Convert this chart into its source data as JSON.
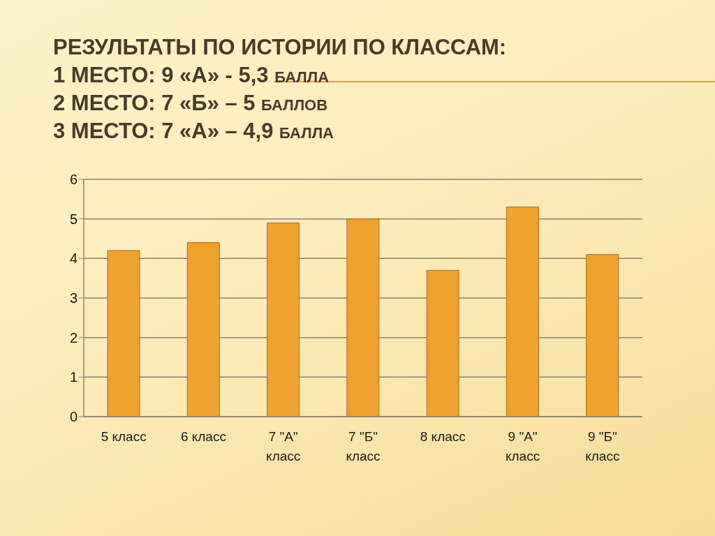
{
  "chart_data": {
    "type": "bar",
    "title": "РЕЗУЛЬТАТЫ ПО ИСТОРИИ ПО КЛАССАМ:",
    "subtitle": "1 МЕСТО: 9 «А» - 5,3 балла\n2 МЕСТО: 7 «Б» – 5 баллов\n3 МЕСТО: 7 «А» – 4,9 балла",
    "categories": [
      "5 класс",
      "6 класс",
      "7 \"А\" класс",
      "7 \"Б\" класс",
      "8 класс",
      "9 \"А\" класс",
      "9 \"Б\" класс"
    ],
    "values": [
      4.2,
      4.4,
      4.9,
      5,
      3.7,
      5.3,
      4.1
    ],
    "color": "#f0a22e",
    "ylim": [
      0,
      6
    ],
    "yticks": [
      0,
      1,
      2,
      3,
      4,
      5,
      6
    ],
    "grid": "y"
  }
}
